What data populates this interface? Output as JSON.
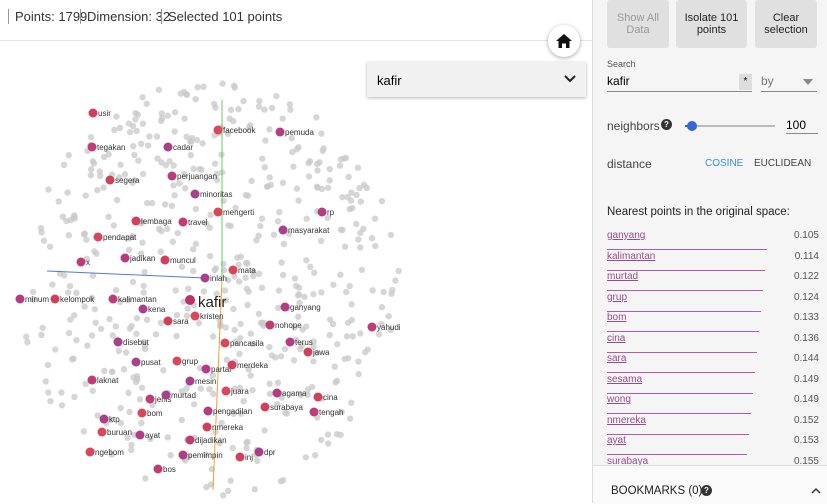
{
  "header": {
    "points": "Points: 1799",
    "dimension": "Dimension: 32",
    "selected": "Selected 101 points"
  },
  "dropdown": "kafir",
  "scatter": {
    "selected_label": "kafir",
    "labels": [
      "usir",
      "tegakan",
      "cadar",
      "facebook",
      "pemuda",
      "segera",
      "perjuangan",
      "minoritas",
      "mengerti",
      "rp",
      "lembaga",
      "travel",
      "masyarakat",
      "pendapat",
      "jadikan",
      "muncul",
      "x",
      "inlah",
      "mata",
      "minum",
      "kelompok",
      "kalimantan",
      "kena",
      "kristen",
      "ganyang",
      "sara",
      "nohope",
      "disebut",
      "pancasila",
      "terus",
      "jawa",
      "yahudi",
      "pusat",
      "grup",
      "partai",
      "merdeka",
      "laknat",
      "mesin",
      "juara",
      "agama",
      "cina",
      "jenis",
      "murtad",
      "bom",
      "pengadilan",
      "surabaya",
      "tengah",
      "ktp",
      "buruan",
      "ayat",
      "nmereka",
      "dijadikan",
      "dpr",
      "ngebom",
      "pemimpin",
      "inj",
      "bos"
    ]
  },
  "buttons": [
    "Show All Data",
    "Isolate 101 points",
    "Clear selection"
  ],
  "search": {
    "label": "Search",
    "value": "kafir",
    "regex": "*",
    "by": "by"
  },
  "neighbors": {
    "label": "neighbors",
    "help": "?",
    "value": "100"
  },
  "distance": {
    "label": "distance",
    "cosine": "COSINE",
    "euclidean": "EUCLIDEAN"
  },
  "nearest": {
    "title": "Nearest points in the original space:",
    "rows": [
      [
        "ganyang",
        "0.105"
      ],
      [
        "kalimantan",
        "0.114"
      ],
      [
        "murtad",
        "0.122"
      ],
      [
        "grup",
        "0.124"
      ],
      [
        "bom",
        "0.133"
      ],
      [
        "cina",
        "0.136"
      ],
      [
        "sara",
        "0.144"
      ],
      [
        "sesama",
        "0.149"
      ],
      [
        "wong",
        "0.149"
      ],
      [
        "nmereka",
        "0.152"
      ],
      [
        "ayat",
        "0.153"
      ],
      [
        "surabaya",
        "0.155"
      ]
    ]
  },
  "bookmarks": {
    "label": "BOOKMARKS (0)",
    "help": "?"
  }
}
